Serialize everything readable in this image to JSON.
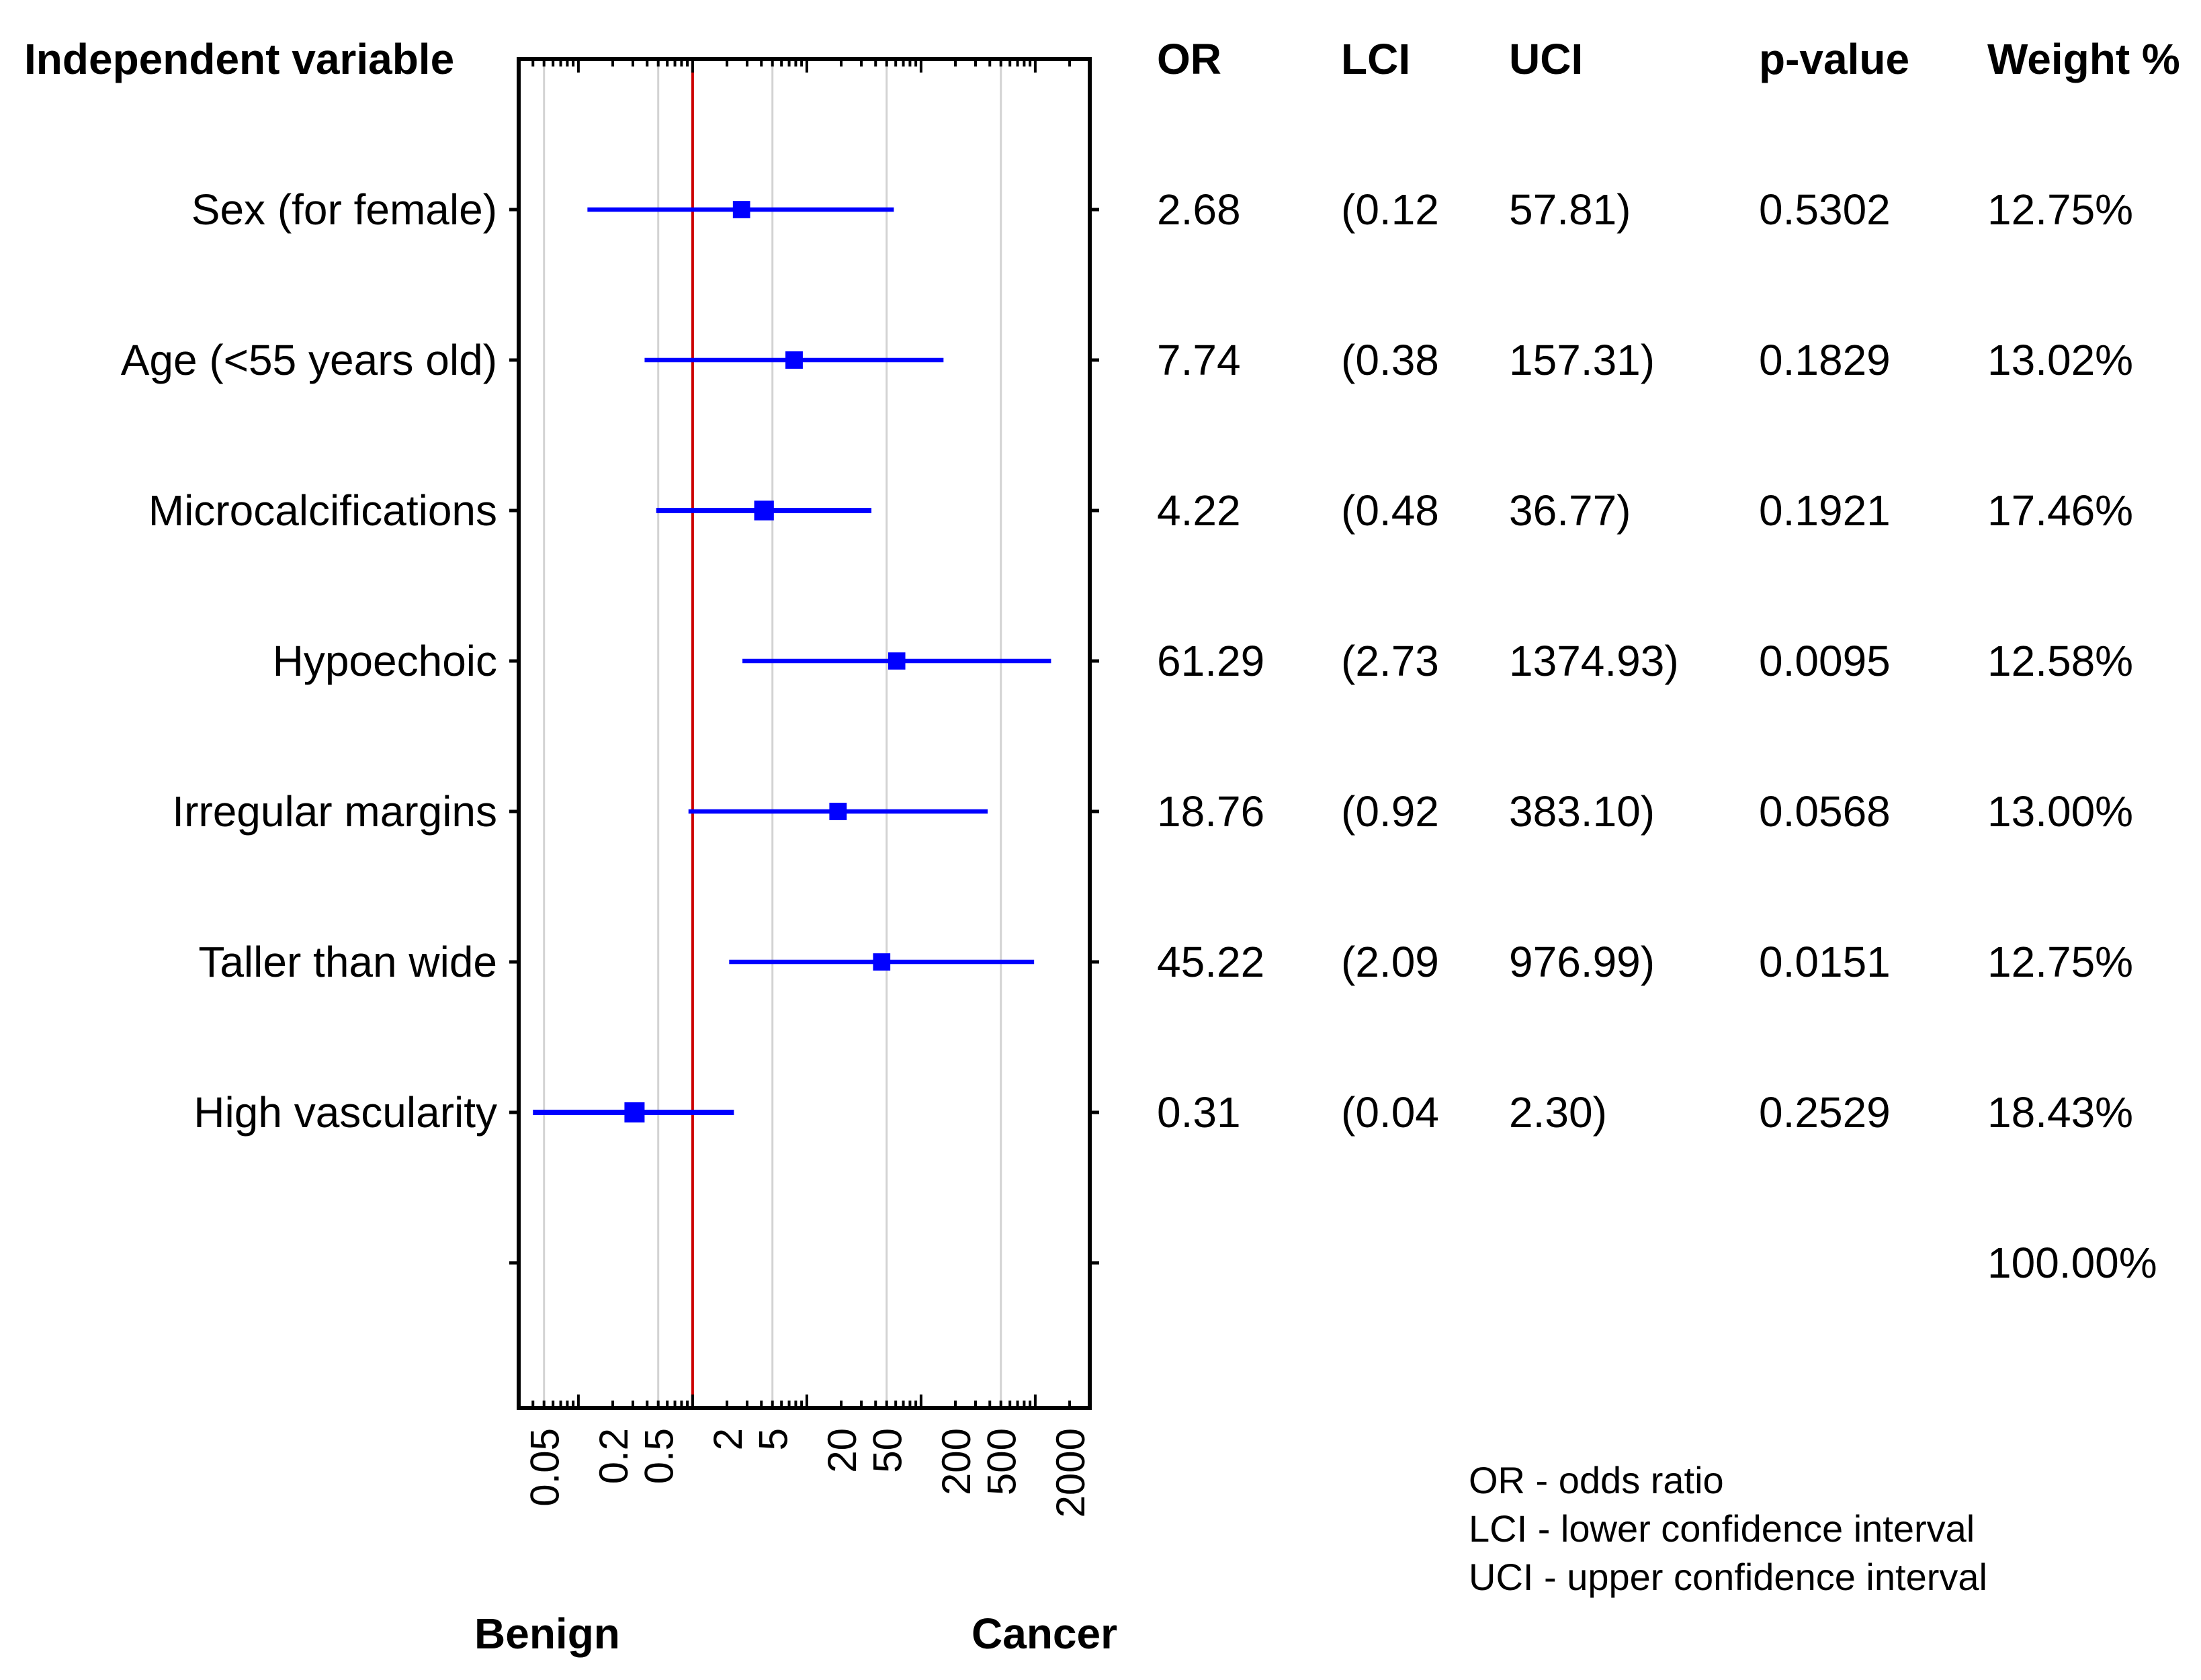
{
  "chart_data": {
    "type": "forest",
    "x_scale": "log",
    "xlim": [
      0.03,
      3000
    ],
    "x_ticks": [
      "0.05",
      "0.2",
      "0.5",
      "2",
      "5",
      "20",
      "50",
      "200",
      "500",
      "2000"
    ],
    "x_tick_values": [
      0.05,
      0.2,
      0.5,
      2,
      5,
      20,
      50,
      200,
      500,
      2000
    ],
    "reference_line": 1,
    "grid_values": [
      0.05,
      0.5,
      5,
      50,
      500
    ],
    "point_color": "#0000ff",
    "reference_color": "#cc0000",
    "grid_color": "#d3d3d3",
    "headers": {
      "variable": "Independent variable",
      "or": "OR",
      "lci": "LCI",
      "uci": "UCI",
      "p": "p-value",
      "weight": "Weight %"
    },
    "rows": [
      {
        "label": "Sex (for female)",
        "or": 2.68,
        "lci": 0.12,
        "uci": 57.81,
        "p": 0.5302,
        "weight": 12.75,
        "or_text": "2.68",
        "lci_text": "(0.12",
        "uci_text": "57.81)",
        "p_text": "0.5302",
        "weight_text": "12.75%"
      },
      {
        "label": "Age (<55 years old)",
        "or": 7.74,
        "lci": 0.38,
        "uci": 157.31,
        "p": 0.1829,
        "weight": 13.02,
        "or_text": "7.74",
        "lci_text": "(0.38",
        "uci_text": "157.31)",
        "p_text": "0.1829",
        "weight_text": "13.02%"
      },
      {
        "label": "Microcalcifications",
        "or": 4.22,
        "lci": 0.48,
        "uci": 36.77,
        "p": 0.1921,
        "weight": 17.46,
        "or_text": "4.22",
        "lci_text": "(0.48",
        "uci_text": "36.77)",
        "p_text": "0.1921",
        "weight_text": "17.46%"
      },
      {
        "label": "Hypoechoic",
        "or": 61.29,
        "lci": 2.73,
        "uci": 1374.93,
        "p": 0.0095,
        "weight": 12.58,
        "or_text": "61.29",
        "lci_text": "(2.73",
        "uci_text": "1374.93)",
        "p_text": "0.0095",
        "weight_text": "12.58%"
      },
      {
        "label": "Irregular margins",
        "or": 18.76,
        "lci": 0.92,
        "uci": 383.1,
        "p": 0.0568,
        "weight": 13.0,
        "or_text": "18.76",
        "lci_text": "(0.92",
        "uci_text": "383.10)",
        "p_text": "0.0568",
        "weight_text": "13.00%"
      },
      {
        "label": "Taller than wide",
        "or": 45.22,
        "lci": 2.09,
        "uci": 976.99,
        "p": 0.0151,
        "weight": 12.75,
        "or_text": "45.22",
        "lci_text": "(2.09",
        "uci_text": "976.99)",
        "p_text": "0.0151",
        "weight_text": "12.75%"
      },
      {
        "label": "High vascularity",
        "or": 0.31,
        "lci": 0.04,
        "uci": 2.3,
        "p": 0.2529,
        "weight": 18.43,
        "or_text": "0.31",
        "lci_text": "(0.04",
        "uci_text": "2.30)",
        "p_text": "0.2529",
        "weight_text": "18.43%"
      }
    ],
    "total_weight": "100.00%",
    "legend": [
      "OR - odds ratio",
      "LCI - lower confidence interval",
      "UCI - upper confidence interval"
    ],
    "footer": {
      "left": "Benign",
      "right": "Cancer"
    }
  }
}
